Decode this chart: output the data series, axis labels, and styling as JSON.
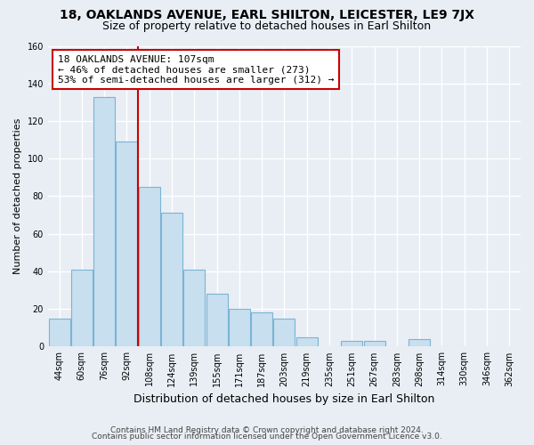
{
  "title": "18, OAKLANDS AVENUE, EARL SHILTON, LEICESTER, LE9 7JX",
  "subtitle": "Size of property relative to detached houses in Earl Shilton",
  "xlabel": "Distribution of detached houses by size in Earl Shilton",
  "ylabel": "Number of detached properties",
  "bin_labels": [
    "44sqm",
    "60sqm",
    "76sqm",
    "92sqm",
    "108sqm",
    "124sqm",
    "139sqm",
    "155sqm",
    "171sqm",
    "187sqm",
    "203sqm",
    "219sqm",
    "235sqm",
    "251sqm",
    "267sqm",
    "283sqm",
    "298sqm",
    "314sqm",
    "330sqm",
    "346sqm",
    "362sqm"
  ],
  "bar_heights": [
    15,
    41,
    133,
    109,
    85,
    71,
    41,
    28,
    20,
    18,
    15,
    5,
    0,
    3,
    3,
    0,
    4,
    0,
    0,
    0,
    0
  ],
  "bar_color": "#c8dff0",
  "bar_edge_color": "#7ab4d4",
  "vline_pos": 3.5,
  "property_line_label": "18 OAKLANDS AVENUE: 107sqm",
  "annotation_line1": "← 46% of detached houses are smaller (273)",
  "annotation_line2": "53% of semi-detached houses are larger (312) →",
  "annotation_box_color": "#ffffff",
  "annotation_box_edge": "#cc0000",
  "vline_color": "#cc0000",
  "ylim": [
    0,
    160
  ],
  "yticks": [
    0,
    20,
    40,
    60,
    80,
    100,
    120,
    140,
    160
  ],
  "footer1": "Contains HM Land Registry data © Crown copyright and database right 2024.",
  "footer2": "Contains public sector information licensed under the Open Government Licence v3.0.",
  "bg_color": "#e8eef4",
  "plot_bg_color": "#e8eef4",
  "grid_color": "#ffffff",
  "title_fontsize": 10,
  "subtitle_fontsize": 9,
  "xlabel_fontsize": 9,
  "ylabel_fontsize": 8,
  "tick_fontsize": 7,
  "footer_fontsize": 6.5
}
